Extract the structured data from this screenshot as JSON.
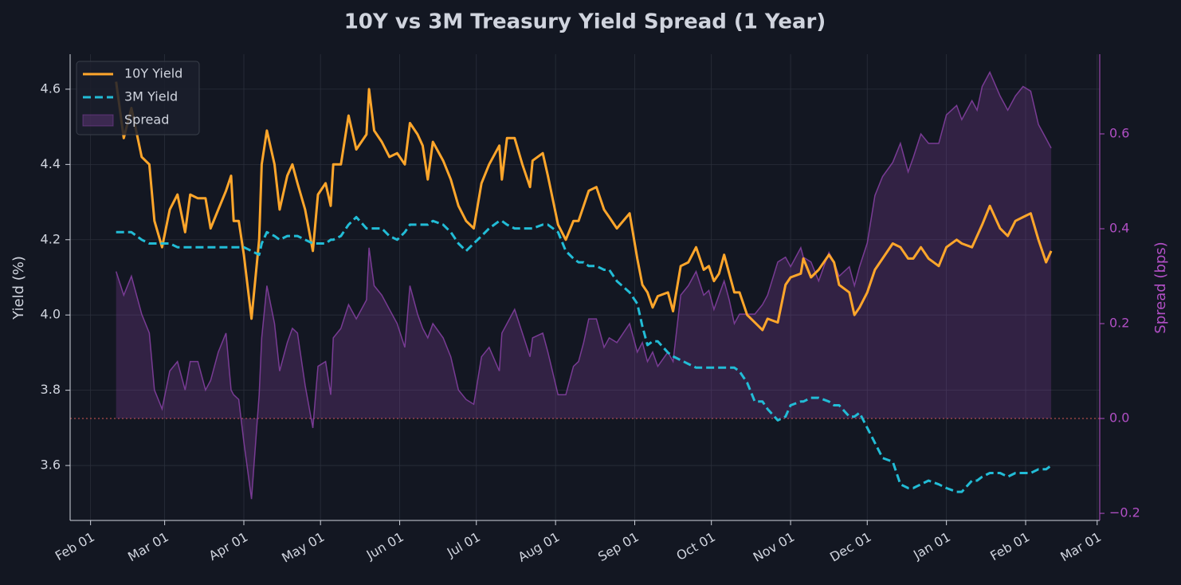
{
  "chart_data": {
    "type": "line",
    "title": "10Y vs 3M Treasury Yield Spread (1 Year)",
    "ylabel": "Yield (%)",
    "y2label": "Spread (bps)",
    "grid": true,
    "legend": "upper left",
    "zero_line_color": "#c0504d",
    "xlim": [
      -8,
      395
    ],
    "xticks": [
      {
        "value": 0,
        "label": "Feb 01"
      },
      {
        "value": 29,
        "label": "Mar 01"
      },
      {
        "value": 60,
        "label": "Apr 01"
      },
      {
        "value": 90,
        "label": "May 01"
      },
      {
        "value": 121,
        "label": "Jun 01"
      },
      {
        "value": 151,
        "label": "Jul 01"
      },
      {
        "value": 182,
        "label": "Aug 01"
      },
      {
        "value": 213,
        "label": "Sep 01"
      },
      {
        "value": 243,
        "label": "Oct 01"
      },
      {
        "value": 274,
        "label": "Nov 01"
      },
      {
        "value": 304,
        "label": "Dec 01"
      },
      {
        "value": 335,
        "label": "Jan 01"
      },
      {
        "value": 366,
        "label": "Feb 01"
      },
      {
        "value": 394,
        "label": "Mar 01"
      }
    ],
    "ylim": [
      3.454,
      4.693
    ],
    "yticks": [
      3.6,
      3.8,
      {
        "value": 4.0,
        "label": "4.0"
      },
      4.2,
      4.4,
      4.6
    ],
    "y2lim": [
      -0.215,
      0.768
    ],
    "y2ticks": [
      {
        "value": -0.2,
        "label": "−0.2"
      },
      {
        "value": 0.0,
        "label": "0.0"
      },
      0.2,
      0.4,
      0.6
    ],
    "x": [
      10,
      13,
      16,
      20,
      23,
      25,
      28,
      31,
      34,
      37,
      39,
      42,
      45,
      47,
      50,
      53,
      55,
      56,
      58,
      60,
      63,
      66,
      67,
      69,
      72,
      74,
      77,
      79,
      81,
      84,
      87,
      89,
      92,
      94,
      95,
      98,
      101,
      104,
      108,
      109,
      111,
      114,
      117,
      120,
      123,
      125,
      128,
      130,
      132,
      134,
      138,
      141,
      144,
      147,
      150,
      153,
      156,
      160,
      161,
      163,
      166,
      169,
      172,
      173,
      177,
      179,
      183,
      186,
      189,
      191,
      193,
      195,
      198,
      201,
      203,
      206,
      211,
      214,
      216,
      218,
      220,
      222,
      226,
      228,
      231,
      234,
      237,
      240,
      242,
      244,
      246,
      248,
      250,
      252,
      254,
      257,
      260,
      263,
      265,
      269,
      272,
      274,
      278,
      279,
      282,
      285,
      289,
      291,
      293,
      297,
      299,
      301,
      304,
      307,
      310,
      314,
      317,
      320,
      322,
      325,
      328,
      332,
      335,
      339,
      341,
      345,
      347,
      349,
      352,
      356,
      359,
      362,
      365,
      368,
      371,
      374,
      376
    ],
    "series": [
      {
        "name": "10Y Yield",
        "color": "#ffa62b",
        "kind": "line",
        "linestyle": "solid",
        "values": [
          4.62,
          4.47,
          4.55,
          4.42,
          4.4,
          4.25,
          4.18,
          4.28,
          4.32,
          4.22,
          4.32,
          4.31,
          4.31,
          4.23,
          4.28,
          4.33,
          4.37,
          4.25,
          4.25,
          4.16,
          3.99,
          4.2,
          4.4,
          4.49,
          4.4,
          4.28,
          4.37,
          4.4,
          4.35,
          4.28,
          4.17,
          4.32,
          4.35,
          4.29,
          4.4,
          4.4,
          4.53,
          4.44,
          4.48,
          4.6,
          4.49,
          4.46,
          4.42,
          4.43,
          4.4,
          4.51,
          4.48,
          4.45,
          4.36,
          4.46,
          4.41,
          4.36,
          4.29,
          4.25,
          4.23,
          4.35,
          4.4,
          4.45,
          4.36,
          4.47,
          4.47,
          4.4,
          4.34,
          4.41,
          4.43,
          4.37,
          4.24,
          4.2,
          4.25,
          4.25,
          4.29,
          4.33,
          4.34,
          4.28,
          4.26,
          4.23,
          4.27,
          4.15,
          4.08,
          4.06,
          4.02,
          4.05,
          4.06,
          4.01,
          4.13,
          4.14,
          4.18,
          4.12,
          4.13,
          4.09,
          4.11,
          4.16,
          4.11,
          4.06,
          4.06,
          4.0,
          3.98,
          3.96,
          3.99,
          3.98,
          4.08,
          4.1,
          4.11,
          4.15,
          4.1,
          4.12,
          4.16,
          4.14,
          4.08,
          4.06,
          4.0,
          4.02,
          4.06,
          4.12,
          4.15,
          4.19,
          4.18,
          4.15,
          4.15,
          4.18,
          4.15,
          4.13,
          4.18,
          4.2,
          4.19,
          4.18,
          4.21,
          4.24,
          4.29,
          4.23,
          4.21,
          4.25,
          4.26,
          4.27,
          4.2,
          4.14,
          4.17
        ]
      },
      {
        "name": "3M Yield",
        "color": "#22bcd6",
        "kind": "line",
        "linestyle": "dashed",
        "values": [
          4.22,
          4.22,
          4.22,
          4.2,
          4.19,
          4.19,
          4.19,
          4.19,
          4.18,
          4.18,
          4.18,
          4.18,
          4.18,
          4.18,
          4.18,
          4.18,
          4.18,
          4.18,
          4.18,
          4.18,
          4.17,
          4.16,
          4.19,
          4.22,
          4.21,
          4.2,
          4.21,
          4.21,
          4.21,
          4.2,
          4.19,
          4.19,
          4.19,
          4.2,
          4.2,
          4.21,
          4.24,
          4.26,
          4.23,
          4.23,
          4.23,
          4.23,
          4.21,
          4.2,
          4.22,
          4.24,
          4.24,
          4.24,
          4.24,
          4.25,
          4.24,
          4.22,
          4.19,
          4.17,
          4.19,
          4.21,
          4.23,
          4.25,
          4.25,
          4.24,
          4.23,
          4.23,
          4.23,
          4.23,
          4.24,
          4.24,
          4.22,
          4.17,
          4.15,
          4.14,
          4.14,
          4.13,
          4.13,
          4.12,
          4.12,
          4.09,
          4.06,
          4.03,
          3.97,
          3.92,
          3.93,
          3.93,
          3.9,
          3.89,
          3.88,
          3.87,
          3.86,
          3.86,
          3.86,
          3.86,
          3.86,
          3.86,
          3.86,
          3.86,
          3.85,
          3.82,
          3.77,
          3.77,
          3.75,
          3.72,
          3.73,
          3.76,
          3.77,
          3.77,
          3.78,
          3.78,
          3.77,
          3.76,
          3.76,
          3.73,
          3.73,
          3.74,
          3.7,
          3.66,
          3.62,
          3.61,
          3.55,
          3.54,
          3.54,
          3.55,
          3.56,
          3.55,
          3.54,
          3.53,
          3.53,
          3.56,
          3.56,
          3.57,
          3.58,
          3.58,
          3.57,
          3.58,
          3.58,
          3.58,
          3.59,
          3.59,
          3.6
        ]
      },
      {
        "name": "Spread",
        "color": "#8e44ad",
        "kind": "area",
        "axis": "y2",
        "values": [
          0.31,
          0.26,
          0.3,
          0.22,
          0.18,
          0.06,
          0.02,
          0.1,
          0.12,
          0.06,
          0.12,
          0.12,
          0.06,
          0.08,
          0.14,
          0.18,
          0.06,
          0.05,
          0.04,
          -0.05,
          -0.17,
          0.05,
          0.17,
          0.28,
          0.2,
          0.1,
          0.16,
          0.19,
          0.18,
          0.07,
          -0.02,
          0.11,
          0.12,
          0.05,
          0.17,
          0.19,
          0.24,
          0.21,
          0.25,
          0.36,
          0.28,
          0.26,
          0.23,
          0.2,
          0.15,
          0.28,
          0.22,
          0.19,
          0.17,
          0.2,
          0.17,
          0.13,
          0.06,
          0.04,
          0.03,
          0.13,
          0.15,
          0.1,
          0.18,
          0.2,
          0.23,
          0.18,
          0.13,
          0.17,
          0.18,
          0.14,
          0.05,
          0.05,
          0.11,
          0.12,
          0.16,
          0.21,
          0.21,
          0.15,
          0.17,
          0.16,
          0.2,
          0.14,
          0.16,
          0.12,
          0.14,
          0.11,
          0.14,
          0.12,
          0.26,
          0.28,
          0.31,
          0.26,
          0.27,
          0.23,
          0.26,
          0.29,
          0.25,
          0.2,
          0.22,
          0.22,
          0.22,
          0.24,
          0.26,
          0.33,
          0.34,
          0.32,
          0.36,
          0.34,
          0.33,
          0.29,
          0.35,
          0.33,
          0.3,
          0.32,
          0.28,
          0.32,
          0.37,
          0.47,
          0.51,
          0.54,
          0.58,
          0.52,
          0.55,
          0.6,
          0.58,
          0.58,
          0.64,
          0.66,
          0.63,
          0.67,
          0.65,
          0.7,
          0.73,
          0.68,
          0.65,
          0.68,
          0.7,
          0.69,
          0.62,
          0.59,
          0.57
        ]
      }
    ]
  }
}
